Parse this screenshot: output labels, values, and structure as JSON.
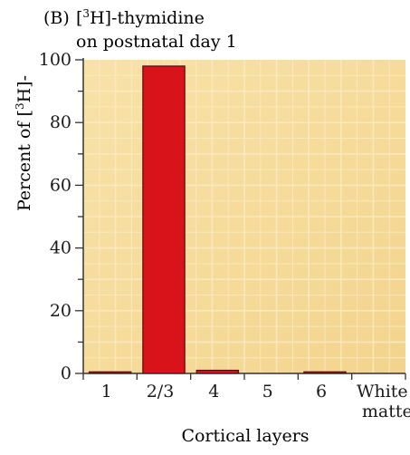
{
  "panel_label": "(B)",
  "title_line1_pre": "[",
  "title_line1_sup": "3",
  "title_line1_post": "H]-thymidine",
  "title_line2": "on postnatal day 1",
  "ylabel_pre": "Percent of [",
  "ylabel_sup": "3",
  "ylabel_post": "H]-",
  "colors": {
    "plot_bg": "#f6dc9e",
    "grid": "#fbecc4",
    "bar_fill": "#d8141a",
    "bar_stroke": "#5a0808",
    "axis": "#333333",
    "text": "#1a1a1a"
  },
  "chart_data": {
    "type": "bar",
    "categories": [
      "1",
      "2/3",
      "4",
      "5",
      "6",
      "White matter"
    ],
    "category_lines": [
      [
        "1"
      ],
      [
        "2/3"
      ],
      [
        "4"
      ],
      [
        "5"
      ],
      [
        "6"
      ],
      [
        "White",
        "matter"
      ]
    ],
    "values": [
      0.5,
      98,
      1,
      0,
      0.5,
      0
    ],
    "title": "",
    "xlabel": "Cortical layers",
    "ylabel": "Percent of [3H]-",
    "ylim": [
      0,
      100
    ],
    "yticks": [
      0,
      20,
      40,
      60,
      80,
      100
    ],
    "grid": true,
    "legend": "none"
  }
}
